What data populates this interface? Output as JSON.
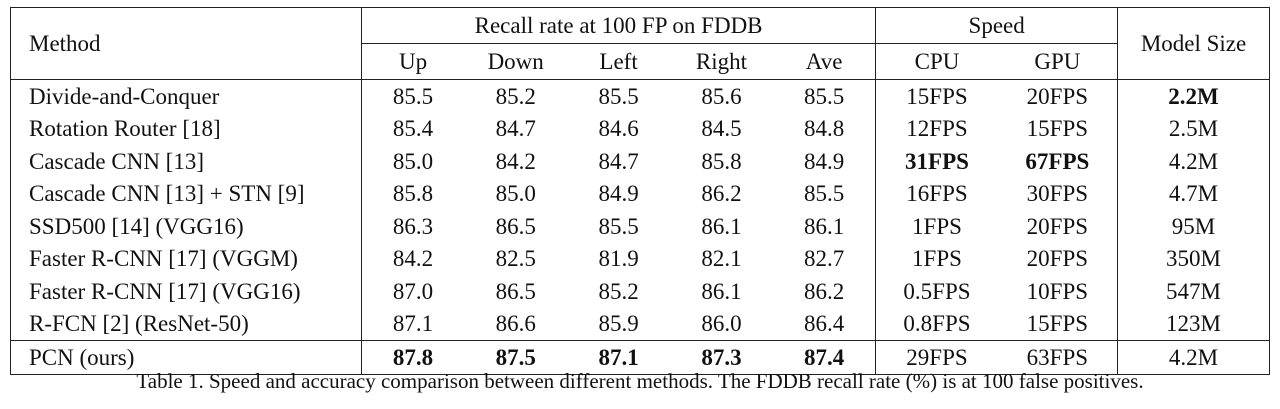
{
  "header": {
    "method": "Method",
    "recall_group": "Recall rate at 100 FP on FDDB",
    "speed_group": "Speed",
    "model_size": "Model Size",
    "recall_cols": [
      "Up",
      "Down",
      "Left",
      "Right",
      "Ave"
    ],
    "speed_cols": [
      "CPU",
      "GPU"
    ]
  },
  "rows": [
    {
      "method": "Divide-and-Conquer",
      "up": "85.5",
      "down": "85.2",
      "left": "85.5",
      "right": "85.6",
      "ave": "85.5",
      "cpu": "15FPS",
      "gpu": "20FPS",
      "size": "2.2M"
    },
    {
      "method": "Rotation Router [18]",
      "up": "85.4",
      "down": "84.7",
      "left": "84.6",
      "right": "84.5",
      "ave": "84.8",
      "cpu": "12FPS",
      "gpu": "15FPS",
      "size": "2.5M"
    },
    {
      "method": "Cascade CNN [13]",
      "up": "85.0",
      "down": "84.2",
      "left": "84.7",
      "right": "85.8",
      "ave": "84.9",
      "cpu": "31FPS",
      "gpu": "67FPS",
      "size": "4.2M"
    },
    {
      "method": "Cascade CNN [13] + STN [9]",
      "up": "85.8",
      "down": "85.0",
      "left": "84.9",
      "right": "86.2",
      "ave": "85.5",
      "cpu": "16FPS",
      "gpu": "30FPS",
      "size": "4.7M"
    },
    {
      "method": "SSD500 [14] (VGG16)",
      "up": "86.3",
      "down": "86.5",
      "left": "85.5",
      "right": "86.1",
      "ave": "86.1",
      "cpu": "1FPS",
      "gpu": "20FPS",
      "size": "95M"
    },
    {
      "method": "Faster R-CNN [17] (VGGM)",
      "up": "84.2",
      "down": "82.5",
      "left": "81.9",
      "right": "82.1",
      "ave": "82.7",
      "cpu": "1FPS",
      "gpu": "20FPS",
      "size": "350M"
    },
    {
      "method": "Faster R-CNN [17] (VGG16)",
      "up": "87.0",
      "down": "86.5",
      "left": "85.2",
      "right": "86.1",
      "ave": "86.2",
      "cpu": "0.5FPS",
      "gpu": "10FPS",
      "size": "547M"
    },
    {
      "method": "R-FCN [2] (ResNet-50)",
      "up": "87.1",
      "down": "86.6",
      "left": "85.9",
      "right": "86.0",
      "ave": "86.4",
      "cpu": "0.8FPS",
      "gpu": "15FPS",
      "size": "123M"
    }
  ],
  "final_row": {
    "method": "PCN (ours)",
    "up": "87.8",
    "down": "87.5",
    "left": "87.1",
    "right": "87.3",
    "ave": "87.4",
    "cpu": "29FPS",
    "gpu": "63FPS",
    "size": "4.2M"
  },
  "caption": "Table 1. Speed and accuracy comparison between different methods. The FDDB recall rate (%) is at 100 false positives."
}
